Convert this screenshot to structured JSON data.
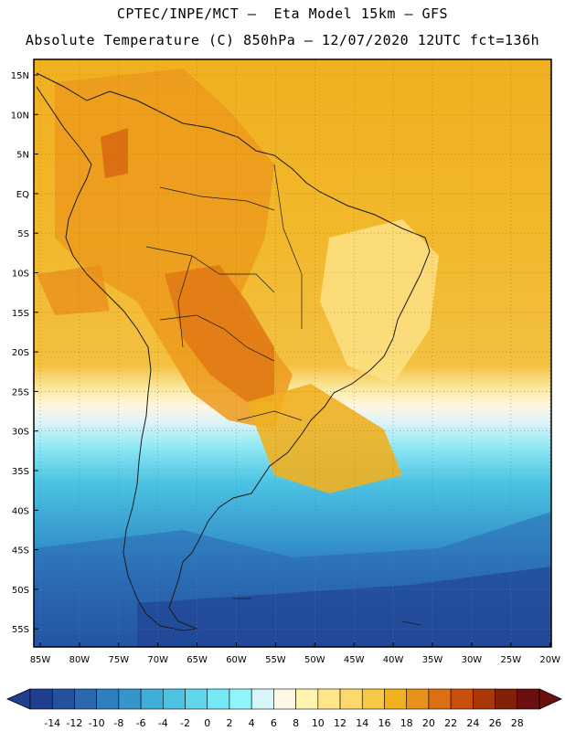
{
  "header": {
    "line1": "CPTEC/INPE/MCT –  Eta Model 15km – GFS",
    "line2": "Absolute Temperature (C) 850hPa – 12/07/2020 12UTC fct=136h"
  },
  "map": {
    "lat_labels": [
      "15N",
      "10N",
      "5N",
      "EQ",
      "5S",
      "10S",
      "15S",
      "20S",
      "25S",
      "30S",
      "35S",
      "40S",
      "45S",
      "50S",
      "55S"
    ],
    "lon_labels": [
      "85W",
      "80W",
      "75W",
      "70W",
      "65W",
      "60W",
      "55W",
      "50W",
      "45W",
      "40W",
      "35W",
      "30W",
      "25W",
      "20W"
    ]
  },
  "colorbar": {
    "labels": [
      "-14",
      "-12",
      "-10",
      "-8",
      "-6",
      "-4",
      "-2",
      "0",
      "2",
      "4",
      "6",
      "8",
      "10",
      "12",
      "14",
      "16",
      "18",
      "20",
      "22",
      "24",
      "26",
      "28"
    ],
    "colors": [
      "#1f3f8f",
      "#24529f",
      "#2a68b0",
      "#2f7fc0",
      "#3696cc",
      "#3eaed9",
      "#4cc3e3",
      "#5fd6ec",
      "#74e8f4",
      "#8ff5fa",
      "#d6f6fb",
      "#fff8e6",
      "#fff3b0",
      "#ffe68a",
      "#fdd86a",
      "#f6c845",
      "#f0b020",
      "#e8901a",
      "#dd6e12",
      "#c8500c",
      "#a83808",
      "#84200a",
      "#6a1010"
    ]
  }
}
